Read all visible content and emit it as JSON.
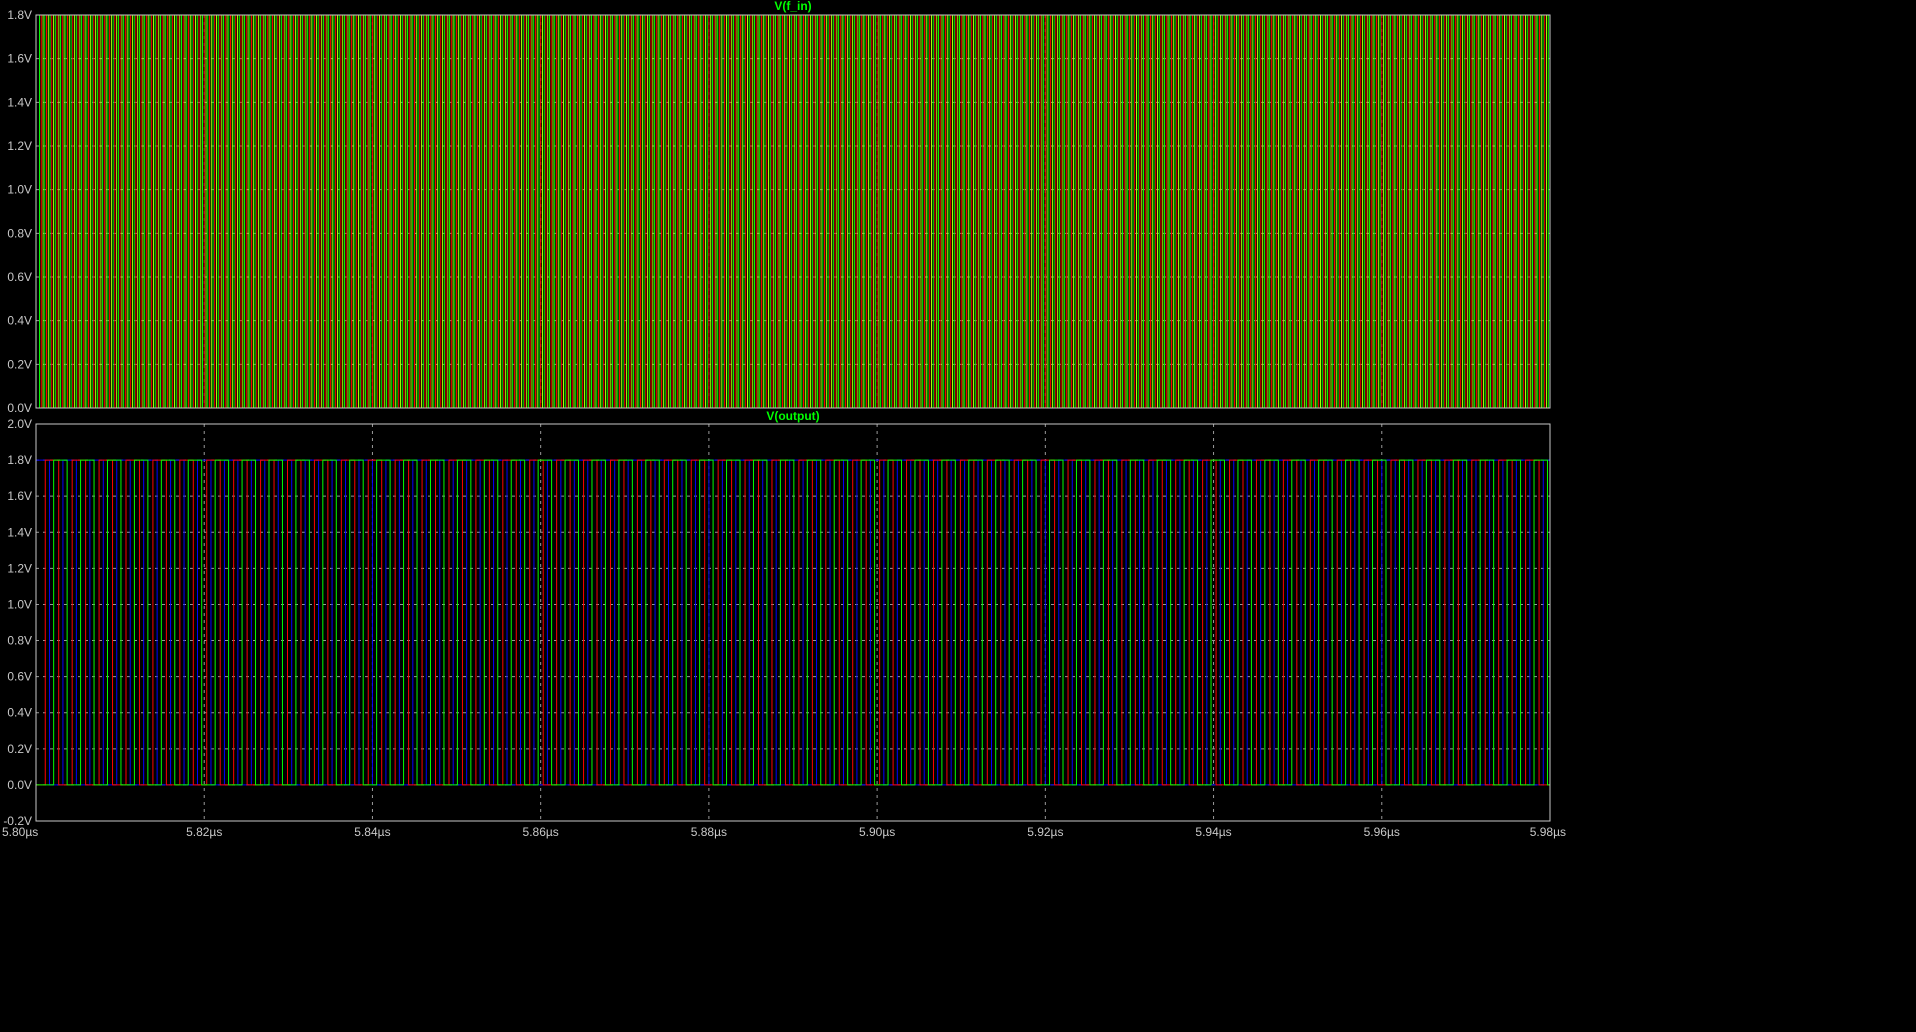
{
  "colors": {
    "background": "#000000",
    "axis_frame": "#c8c8c8",
    "grid": "#9a9a9a",
    "tick_text": "#c8c8c8",
    "title_text": "#00ff00",
    "trace_green": "#00ff00",
    "trace_red": "#ff0000",
    "trace_blue": "#0000ff",
    "trace_lime": "#aaff00",
    "trace_yellow": "#ffff00"
  },
  "chart_data": [
    {
      "type": "line",
      "title": "V(f_in)",
      "xlabel": "",
      "ylabel": "",
      "x_unit": "µs",
      "y_unit": "V",
      "xlim": [
        5.8,
        5.98
      ],
      "ylim": [
        0.0,
        1.8
      ],
      "y_ticks": [
        "0.0V",
        "0.2V",
        "0.4V",
        "0.6V",
        "0.8V",
        "1.0V",
        "1.2V",
        "1.4V",
        "1.6V",
        "1.8V"
      ],
      "grid": true,
      "legend": "none",
      "signal": {
        "kind": "square_wave_bundle",
        "low": 0.0,
        "high": 1.8,
        "period": 0.00125,
        "duty": 0.5,
        "traces": [
          {
            "color": "#ff0000",
            "phase": 0.0
          },
          {
            "color": "#00ff00",
            "phase": 0.00042
          },
          {
            "color": "#aaff00",
            "phase": 0.00084
          }
        ]
      }
    },
    {
      "type": "line",
      "title": "V(output)",
      "xlabel": "",
      "ylabel": "",
      "x_unit": "µs",
      "y_unit": "V",
      "xlim": [
        5.8,
        5.98
      ],
      "ylim": [
        -0.2,
        2.0
      ],
      "x_ticks": [
        "5.80µs",
        "5.82µs",
        "5.84µs",
        "5.86µs",
        "5.88µs",
        "5.90µs",
        "5.92µs",
        "5.94µs",
        "5.96µs",
        "5.98µs"
      ],
      "y_ticks": [
        "-0.2V",
        "0.0V",
        "0.2V",
        "0.4V",
        "0.6V",
        "0.8V",
        "1.0V",
        "1.2V",
        "1.4V",
        "1.6V",
        "1.8V",
        "2.0V"
      ],
      "grid": true,
      "legend": "none",
      "signal": {
        "kind": "square_wave_bundle",
        "low": 0.0,
        "high": 1.8,
        "period": 0.0032,
        "duty": 0.5,
        "traces": [
          {
            "color": "#0000ff",
            "phase": 0.0
          },
          {
            "color": "#ff0000",
            "phase": 0.0011
          },
          {
            "color": "#00ff00",
            "phase": 0.0021
          }
        ]
      }
    }
  ]
}
